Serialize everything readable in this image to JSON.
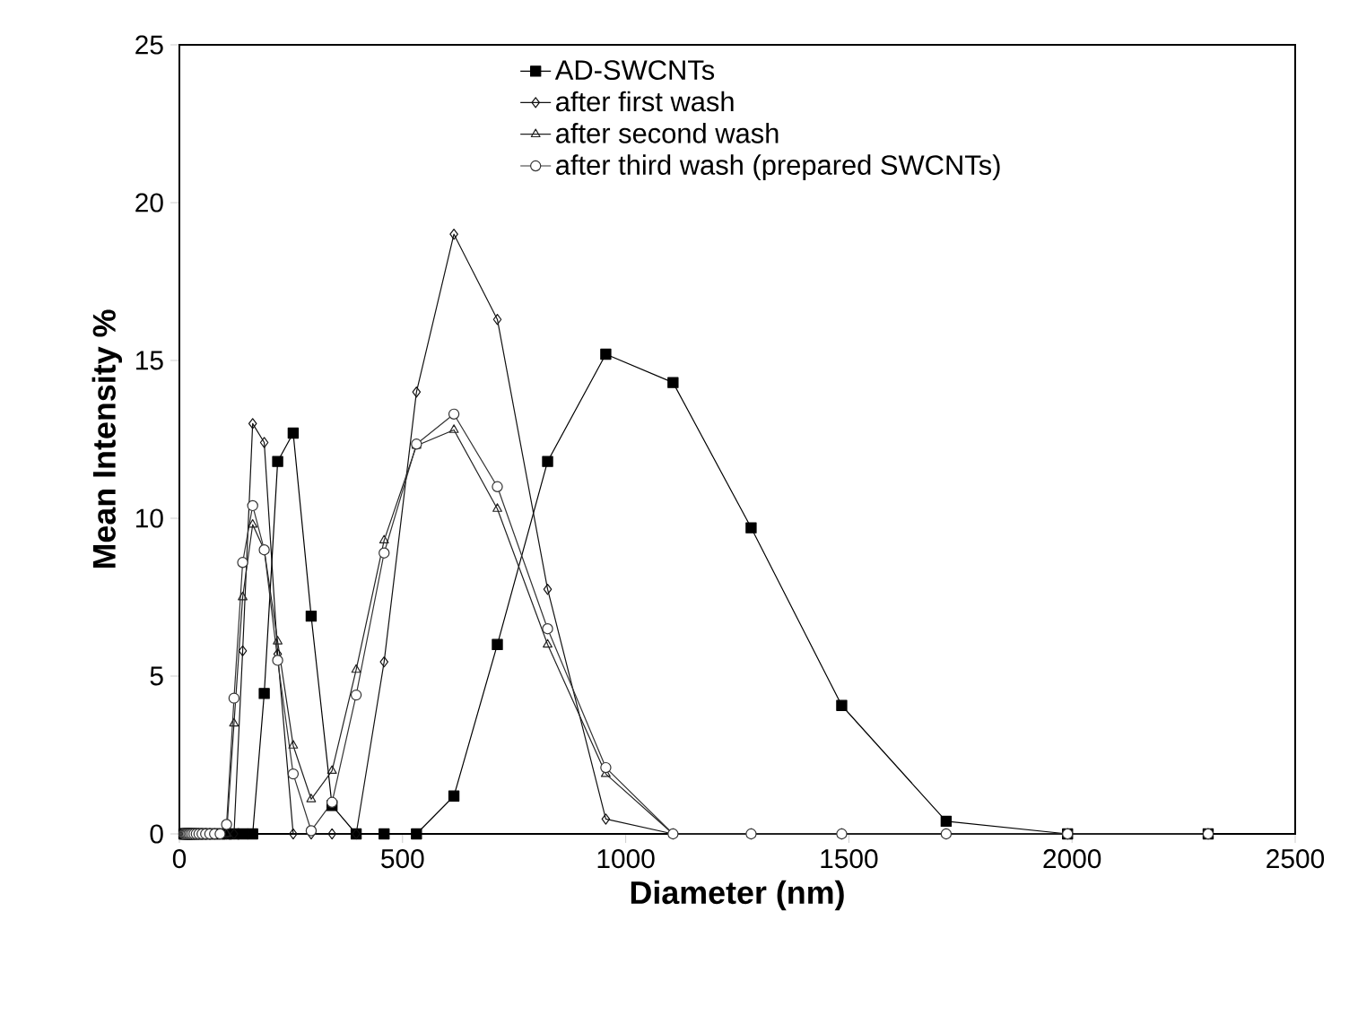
{
  "chart_data": {
    "type": "line",
    "xlabel": "Diameter (nm)",
    "ylabel": "Mean Intensity %",
    "x": [
      10.1,
      11.7,
      13.54,
      15.69,
      18.17,
      21.04,
      24.36,
      28.21,
      32.67,
      37.84,
      43.82,
      50.75,
      58.77,
      68.06,
      78.82,
      91.28,
      105.7,
      122.4,
      141.8,
      164.2,
      190.1,
      220.2,
      255,
      295.3,
      342,
      396.1,
      458.7,
      531.2,
      615.1,
      712.4,
      825,
      955.4,
      1106,
      1281,
      1484,
      1718,
      1990,
      2305
    ],
    "series": [
      {
        "name": "AD-SWCNTs",
        "color": "#000000",
        "marker": "square",
        "values": [
          0,
          0,
          0,
          0,
          0,
          0,
          0,
          0,
          0,
          0,
          0,
          0,
          0,
          0,
          0,
          0,
          0,
          0,
          0,
          0,
          4.45,
          11.8,
          12.7,
          6.9,
          0.9,
          0,
          0,
          0,
          1.2,
          6.0,
          11.8,
          15.2,
          14.3,
          9.7,
          4.07,
          0.4,
          0,
          0
        ]
      },
      {
        "name": "after first wash",
        "color": "#111111",
        "marker": "diamond",
        "values": [
          0,
          0,
          0,
          0,
          0,
          0,
          0,
          0,
          0,
          0,
          0,
          0,
          0,
          0,
          0,
          0,
          0,
          0,
          5.8,
          13.0,
          12.4,
          5.7,
          0,
          0,
          0,
          0,
          5.45,
          14.0,
          19.0,
          16.3,
          7.75,
          0.47,
          0,
          0,
          0,
          0,
          0,
          0
        ]
      },
      {
        "name": "after second wash",
        "color": "#222222",
        "marker": "triangle",
        "values": [
          0,
          0,
          0,
          0,
          0,
          0,
          0,
          0,
          0,
          0,
          0,
          0,
          0,
          0,
          0,
          0,
          0,
          3.5,
          7.5,
          9.8,
          9.0,
          6.1,
          2.8,
          1.1,
          2.0,
          5.2,
          9.3,
          12.3,
          12.8,
          10.3,
          6.0,
          1.9,
          0,
          0,
          0,
          0,
          0,
          0
        ]
      },
      {
        "name": "after third wash (prepared SWCNTs)",
        "color": "#333333",
        "marker": "circle",
        "values": [
          0,
          0,
          0,
          0,
          0,
          0,
          0,
          0,
          0,
          0,
          0,
          0,
          0,
          0,
          0,
          0,
          0.3,
          4.3,
          8.6,
          10.4,
          9.0,
          5.5,
          1.9,
          0.1,
          1.0,
          4.4,
          8.9,
          12.35,
          13.3,
          11.0,
          6.5,
          2.1,
          0,
          0,
          0,
          0,
          0,
          0
        ]
      }
    ],
    "xlim": [
      0,
      2500
    ],
    "ylim": [
      0,
      25
    ],
    "xticks": [
      0,
      500,
      1000,
      1500,
      2000,
      2500
    ],
    "yticks": [
      0,
      5,
      10,
      15,
      20,
      25
    ],
    "legend": "top right",
    "grid": false,
    "line_style": "solid"
  }
}
